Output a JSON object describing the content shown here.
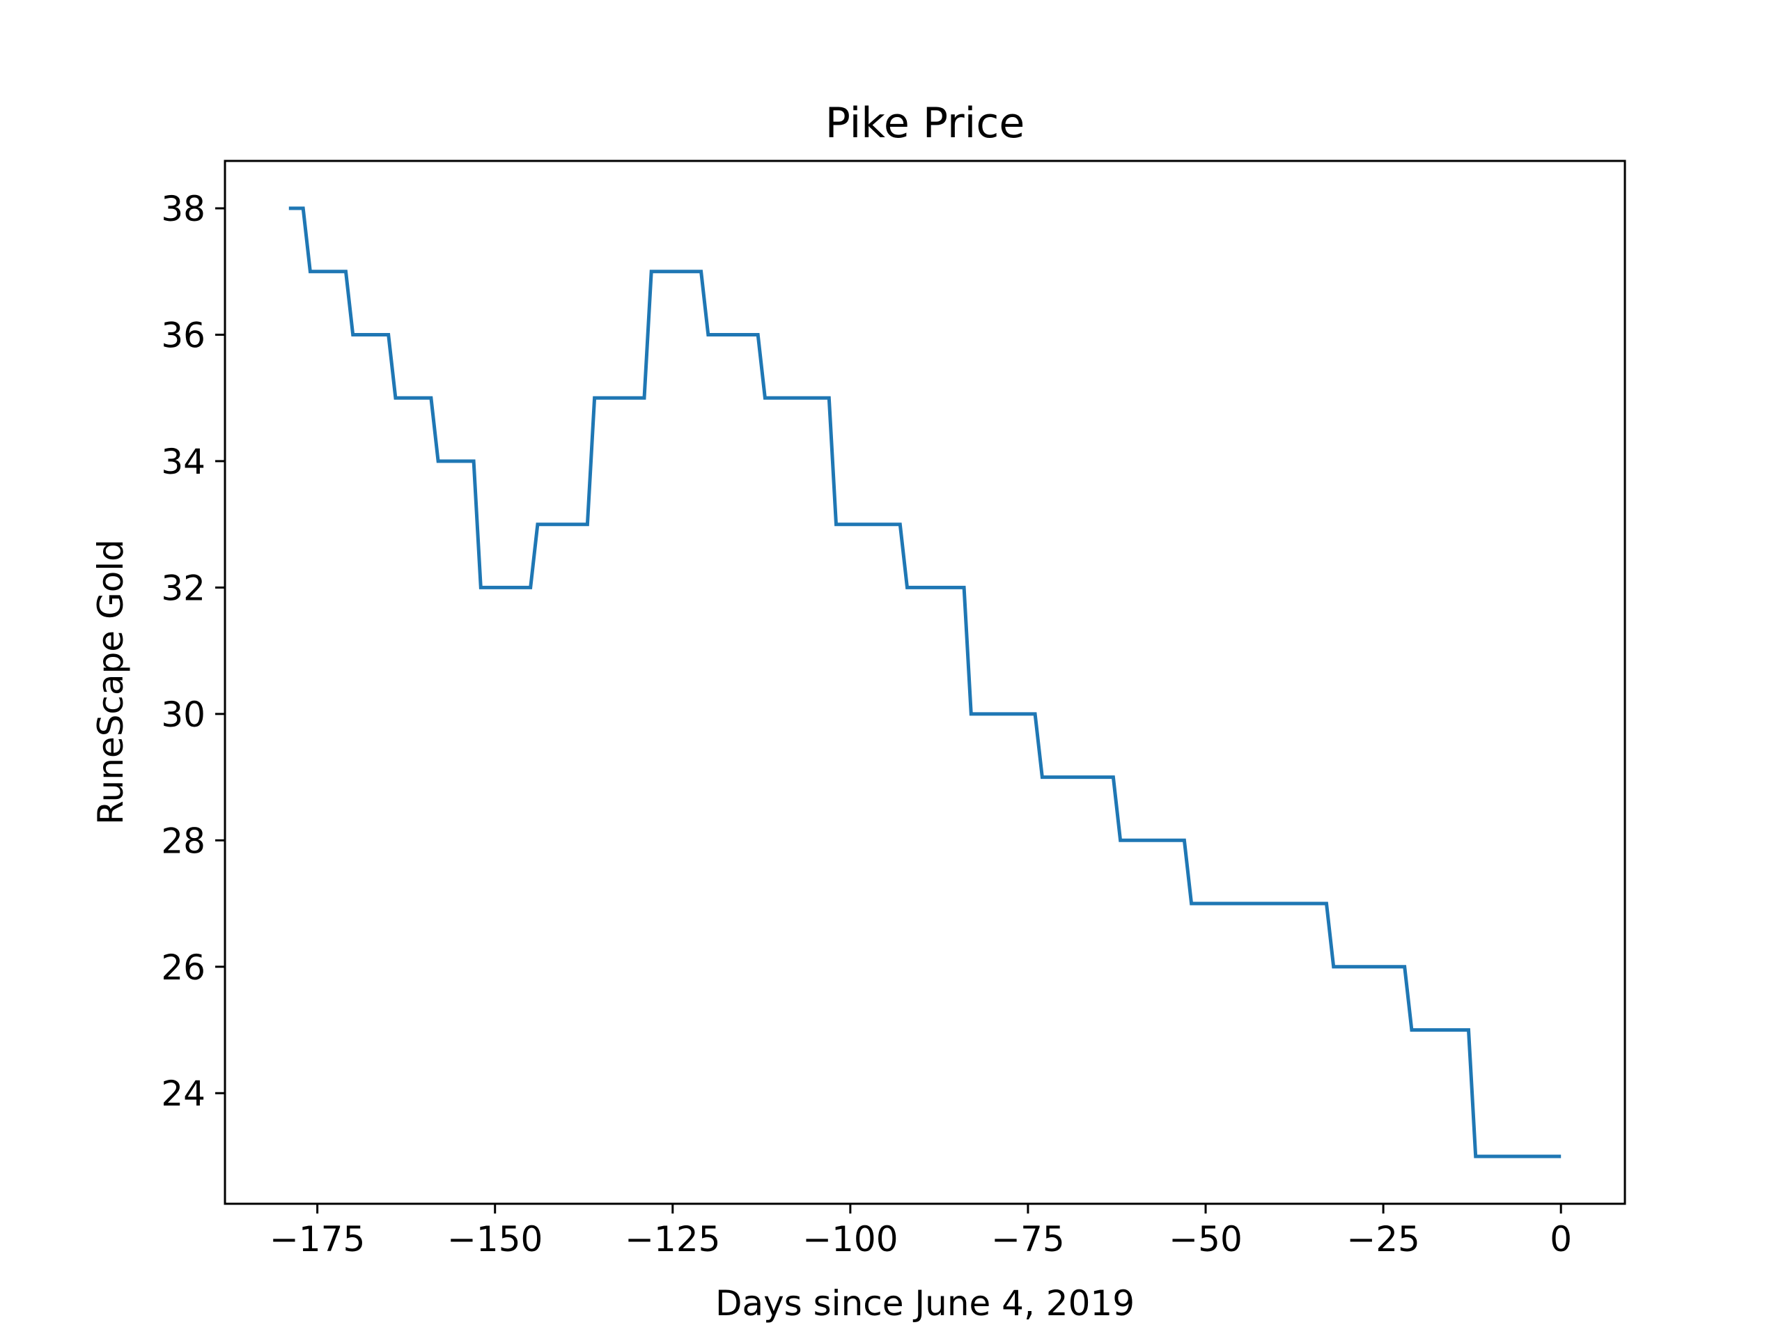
{
  "chart_data": {
    "type": "line",
    "title": "Pike Price",
    "xlabel": "Days since June 4, 2019",
    "ylabel": "RuneScape Gold",
    "xlim": [
      -188,
      9
    ],
    "ylim": [
      22.25,
      38.75
    ],
    "xticks": [
      -175,
      -150,
      -125,
      -100,
      -75,
      -50,
      -25,
      0
    ],
    "xtick_labels": [
      "−175",
      "−150",
      "−125",
      "−100",
      "−75",
      "−50",
      "−25",
      "0"
    ],
    "yticks": [
      24,
      26,
      28,
      30,
      32,
      34,
      36,
      38
    ],
    "ytick_labels": [
      "24",
      "26",
      "28",
      "30",
      "32",
      "34",
      "36",
      "38"
    ],
    "grid": false,
    "line_color": "#1f77b4",
    "series": [
      {
        "x": [
          -179,
          -177,
          -176,
          -171,
          -170,
          -165,
          -164,
          -159,
          -158,
          -153,
          -152,
          -145,
          -144,
          -137,
          -136,
          -129,
          -128,
          -121,
          -120,
          -113,
          -112,
          -103,
          -102,
          -93,
          -92,
          -84,
          -83,
          -74,
          -73,
          -63,
          -62,
          -53,
          -52,
          -33,
          -32,
          -22,
          -21,
          -13,
          -12,
          0
        ],
        "y": [
          38,
          38,
          37,
          37,
          36,
          36,
          35,
          35,
          34,
          34,
          32,
          32,
          33,
          33,
          35,
          35,
          37,
          37,
          36,
          36,
          35,
          35,
          33,
          33,
          32,
          32,
          30,
          30,
          29,
          29,
          28,
          28,
          27,
          27,
          26,
          26,
          25,
          25,
          23,
          23
        ]
      }
    ]
  }
}
